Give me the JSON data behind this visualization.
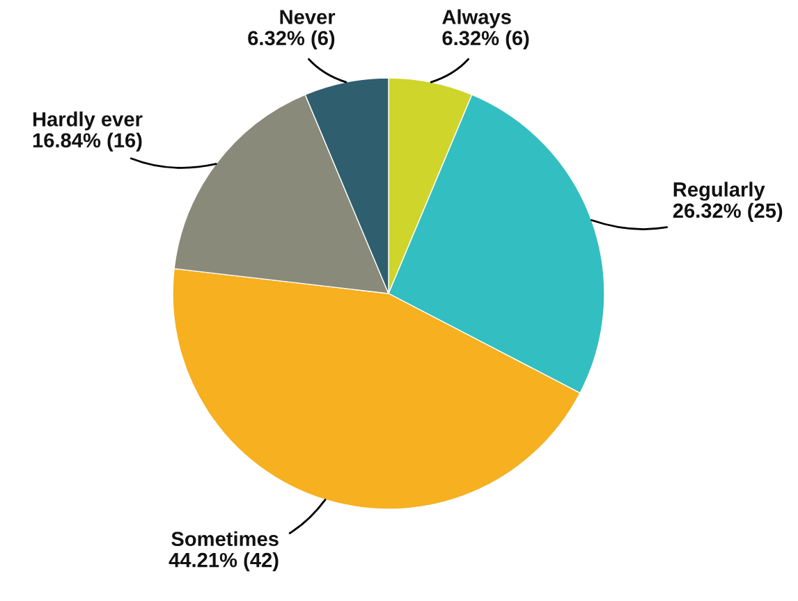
{
  "chart_data": {
    "type": "pie",
    "categories": [
      "Always",
      "Regularly",
      "Sometimes",
      "Hardly ever",
      "Never"
    ],
    "values": [
      6,
      25,
      42,
      16,
      6
    ],
    "value_labels": [
      "6.32% (6)",
      "26.32% (25)",
      "44.21% (42)",
      "16.84% (16)",
      "6.32% (6)"
    ],
    "colors": [
      "#cfd52a",
      "#33bec1",
      "#f6b020",
      "#898a79",
      "#2f5f6e"
    ]
  }
}
